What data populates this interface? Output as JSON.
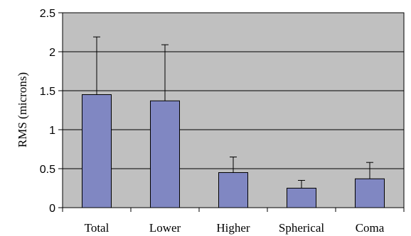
{
  "chart_data": {
    "type": "bar",
    "categories": [
      "Total",
      "Lower",
      "Higher",
      "Spherical",
      "Coma"
    ],
    "values": [
      1.45,
      1.37,
      0.45,
      0.25,
      0.37
    ],
    "error_plus": [
      0.74,
      0.72,
      0.2,
      0.1,
      0.21
    ],
    "title": "",
    "xlabel": "",
    "ylabel": "RMS (microns)",
    "ylim": [
      0,
      2.5
    ],
    "yticks": [
      "0",
      "0.5",
      "1",
      "1.5",
      "2",
      "2.5"
    ],
    "grid": true,
    "legend": "none",
    "colors": {
      "plot_background": "#c0c0c0",
      "bar_fill": "#8087c2",
      "bar_stroke": "#000000",
      "gridline": "#000000"
    }
  }
}
